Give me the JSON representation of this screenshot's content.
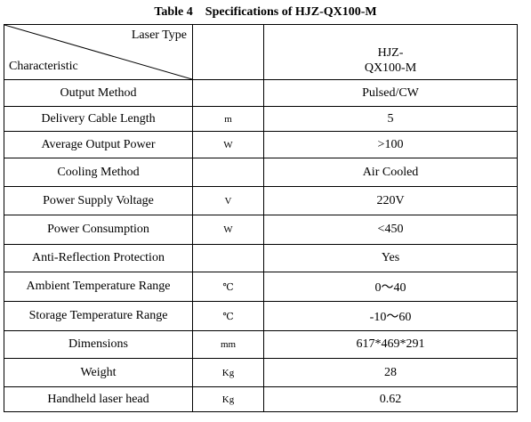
{
  "caption": {
    "number": "Table 4",
    "title": "Specifications of HJZ-QX100-M"
  },
  "header": {
    "column_label": "Laser Type",
    "row_label": "Characteristic",
    "model_line1": "HJZ-",
    "model_line2": "QX100-M"
  },
  "rows": [
    {
      "characteristic": "Output Method",
      "unit": "",
      "value": "Pulsed/CW"
    },
    {
      "characteristic": "Delivery Cable Length",
      "unit": "m",
      "value": "5"
    },
    {
      "characteristic": "Average Output Power",
      "unit": "W",
      "value": ">100"
    },
    {
      "characteristic": "Cooling Method",
      "unit": "",
      "value": "Air Cooled"
    },
    {
      "characteristic": "Power Supply Voltage",
      "unit": "V",
      "value": "220V"
    },
    {
      "characteristic": "Power Consumption",
      "unit": "W",
      "value": "<450"
    },
    {
      "characteristic": "Anti-Reflection Protection",
      "unit": "",
      "value": "Yes"
    },
    {
      "characteristic": "Ambient Temperature Range",
      "unit": "℃",
      "value": "0～40"
    },
    {
      "characteristic": "Storage Temperature Range",
      "unit": "℃",
      "value": "-10～60"
    },
    {
      "characteristic": "Dimensions",
      "unit": "mm",
      "value": "617*469*291"
    },
    {
      "characteristic": "Weight",
      "unit": "Kg",
      "value": "28"
    },
    {
      "characteristic": "Handheld laser head",
      "unit": "Kg",
      "value": "0.62"
    }
  ]
}
